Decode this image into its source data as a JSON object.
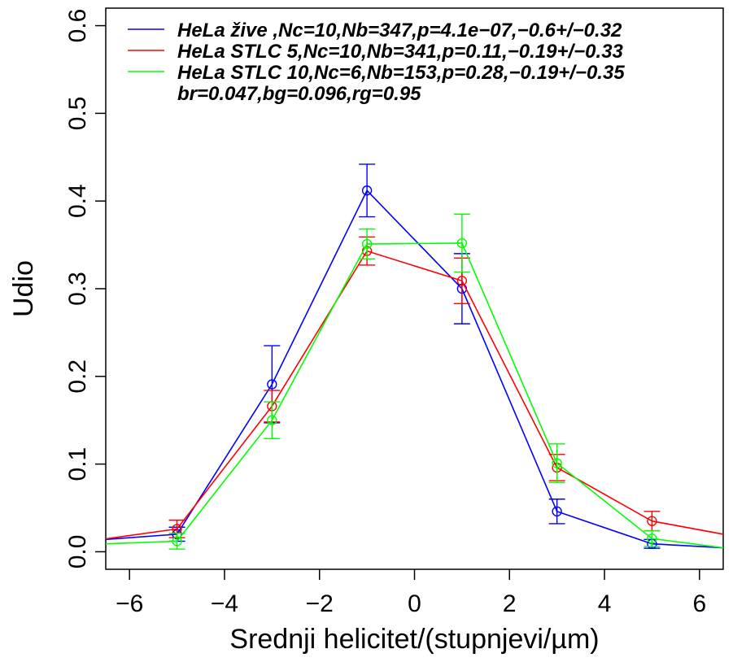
{
  "chart_data": {
    "type": "line",
    "xlabel": "Srednji helicitet/(stupnjevi/µm)",
    "ylabel": "Udio",
    "xlim": [
      -6.5,
      6.5
    ],
    "ylim": [
      -0.02,
      0.62
    ],
    "xticks": [
      -6,
      -4,
      -2,
      0,
      2,
      4,
      6
    ],
    "xtick_labels": [
      "−6",
      "−4",
      "−2",
      "0",
      "2",
      "4",
      "6"
    ],
    "yticks": [
      0.0,
      0.1,
      0.2,
      0.3,
      0.4,
      0.5,
      0.6
    ],
    "ytick_labels": [
      "0.0",
      "0.1",
      "0.2",
      "0.3",
      "0.4",
      "0.5",
      "0.6"
    ],
    "grid": false,
    "legend_position": "top",
    "legend_note": "br=0.047,bg=0.096,rg=0.95",
    "series": [
      {
        "name": "HeLa  žive ,Nc=10,Nb=347,p=4.1e−07,−0.6+/−0.32",
        "color": "#0000ff",
        "x": [
          -7,
          -5,
          -3,
          -1,
          1,
          3,
          5,
          7
        ],
        "y": [
          0.012,
          0.02,
          0.191,
          0.412,
          0.3,
          0.046,
          0.009,
          0.003
        ],
        "err": [
          null,
          0.008,
          0.044,
          0.03,
          0.04,
          0.014,
          0.005,
          null
        ]
      },
      {
        "name": "HeLa STLC 5,Nc=10,Nb=341,p=0.11,−0.19+/−0.33",
        "color": "#ff0000",
        "x": [
          -7,
          -5,
          -3,
          -1,
          1,
          3,
          5,
          7
        ],
        "y": [
          0.011,
          0.026,
          0.166,
          0.343,
          0.309,
          0.096,
          0.035,
          0.015
        ],
        "err": [
          null,
          0.01,
          0.018,
          0.016,
          0.026,
          0.015,
          0.011,
          null
        ]
      },
      {
        "name": "HeLa STLC 10,Nc=6,Nb=153,p=0.28,−0.19+/−0.35",
        "color": "#00ff00",
        "x": [
          -7,
          -5,
          -3,
          -1,
          1,
          3,
          5,
          7
        ],
        "y": [
          0.008,
          0.012,
          0.15,
          0.351,
          0.352,
          0.101,
          0.015,
          0.001
        ],
        "err": [
          null,
          0.009,
          0.021,
          0.017,
          0.033,
          0.022,
          0.009,
          null
        ]
      }
    ]
  }
}
